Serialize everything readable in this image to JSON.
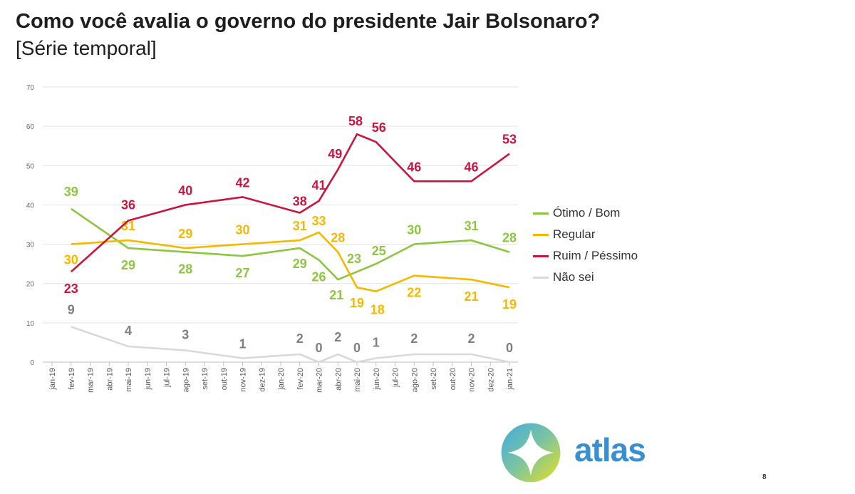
{
  "page": {
    "title": "Como você avalia o governo do presidente Jair Bolsonaro?",
    "subtitle": "[Série temporal]",
    "brand": "atlas",
    "page_number": "8"
  },
  "chart_data": {
    "type": "line",
    "title": "Como você avalia o governo do presidente Jair Bolsonaro?",
    "subtitle": "[Série temporal]",
    "ylim": [
      0,
      70
    ],
    "yticks": [
      0,
      10,
      20,
      30,
      40,
      50,
      60,
      70
    ],
    "categories": [
      "jan-19",
      "fev-19",
      "mar-19",
      "abr-19",
      "mai-19",
      "jun-19",
      "jul-19",
      "ago-19",
      "set-19",
      "out-19",
      "nov-19",
      "dez-19",
      "jan-20",
      "fev-20",
      "mar-20",
      "abr-20",
      "mai-20",
      "jun-20",
      "jul-20",
      "ago-20",
      "set-20",
      "out-20",
      "nov-20",
      "dez-20",
      "jan-21"
    ],
    "legend_position": "right",
    "series": [
      {
        "name": "Ótimo / Bom",
        "color": "#8cc63f",
        "points": [
          [
            1,
            39
          ],
          [
            4,
            29
          ],
          [
            7,
            28
          ],
          [
            10,
            27
          ],
          [
            13,
            29
          ],
          [
            14,
            26
          ],
          [
            15,
            21
          ],
          [
            16,
            23
          ],
          [
            17,
            25
          ],
          [
            19,
            30
          ],
          [
            22,
            31
          ],
          [
            24,
            28
          ]
        ],
        "labels": [
          [
            1,
            "39"
          ],
          [
            4,
            "29"
          ],
          [
            7,
            "28"
          ],
          [
            10,
            "27"
          ],
          [
            13,
            "29"
          ],
          [
            14,
            "26"
          ],
          [
            15,
            "21"
          ],
          [
            16,
            "23"
          ],
          [
            17,
            "25"
          ],
          [
            19,
            "30"
          ],
          [
            22,
            "31"
          ],
          [
            24,
            "28"
          ]
        ]
      },
      {
        "name": "Regular",
        "color": "#f5b800",
        "points": [
          [
            1,
            30
          ],
          [
            4,
            31
          ],
          [
            7,
            29
          ],
          [
            10,
            30
          ],
          [
            13,
            31
          ],
          [
            14,
            33
          ],
          [
            15,
            28
          ],
          [
            16,
            19
          ],
          [
            17,
            18
          ],
          [
            19,
            22
          ],
          [
            22,
            21
          ],
          [
            24,
            19
          ]
        ],
        "labels": [
          [
            1,
            "30"
          ],
          [
            4,
            "31"
          ],
          [
            7,
            "29"
          ],
          [
            10,
            "30"
          ],
          [
            13,
            "31"
          ],
          [
            14,
            "33"
          ],
          [
            15,
            "28"
          ],
          [
            16,
            "19"
          ],
          [
            17,
            "18"
          ],
          [
            19,
            "22"
          ],
          [
            22,
            "21"
          ],
          [
            24,
            "19"
          ]
        ]
      },
      {
        "name": "Ruim / Péssimo",
        "color": "#c8163f",
        "points": [
          [
            1,
            23
          ],
          [
            4,
            36
          ],
          [
            7,
            40
          ],
          [
            10,
            42
          ],
          [
            13,
            38
          ],
          [
            14,
            41
          ],
          [
            15,
            49
          ],
          [
            16,
            58
          ],
          [
            17,
            56
          ],
          [
            19,
            46
          ],
          [
            22,
            46
          ],
          [
            24,
            53
          ]
        ],
        "labels": [
          [
            1,
            "23"
          ],
          [
            4,
            "36"
          ],
          [
            7,
            "40"
          ],
          [
            10,
            "42"
          ],
          [
            13,
            "38"
          ],
          [
            14,
            "41"
          ],
          [
            15,
            "49"
          ],
          [
            16,
            "58"
          ],
          [
            17,
            "56"
          ],
          [
            19,
            "46"
          ],
          [
            22,
            "46"
          ],
          [
            24,
            "53"
          ]
        ]
      },
      {
        "name": "Não sei",
        "color": "#d9d9d9",
        "label_color": "#7f7f7f",
        "points": [
          [
            1,
            9
          ],
          [
            4,
            4
          ],
          [
            7,
            3
          ],
          [
            10,
            1
          ],
          [
            13,
            2
          ],
          [
            14,
            0
          ],
          [
            15,
            2
          ],
          [
            16,
            0
          ],
          [
            17,
            1
          ],
          [
            19,
            2
          ],
          [
            22,
            2
          ],
          [
            24,
            0
          ]
        ],
        "labels": [
          [
            1,
            "9"
          ],
          [
            4,
            "4"
          ],
          [
            7,
            "3"
          ],
          [
            10,
            "1"
          ],
          [
            13,
            "2"
          ],
          [
            14,
            "0"
          ],
          [
            15,
            "2"
          ],
          [
            16,
            "0"
          ],
          [
            17,
            "1"
          ],
          [
            19,
            "2"
          ],
          [
            22,
            "2"
          ],
          [
            24,
            "0"
          ]
        ]
      }
    ]
  }
}
